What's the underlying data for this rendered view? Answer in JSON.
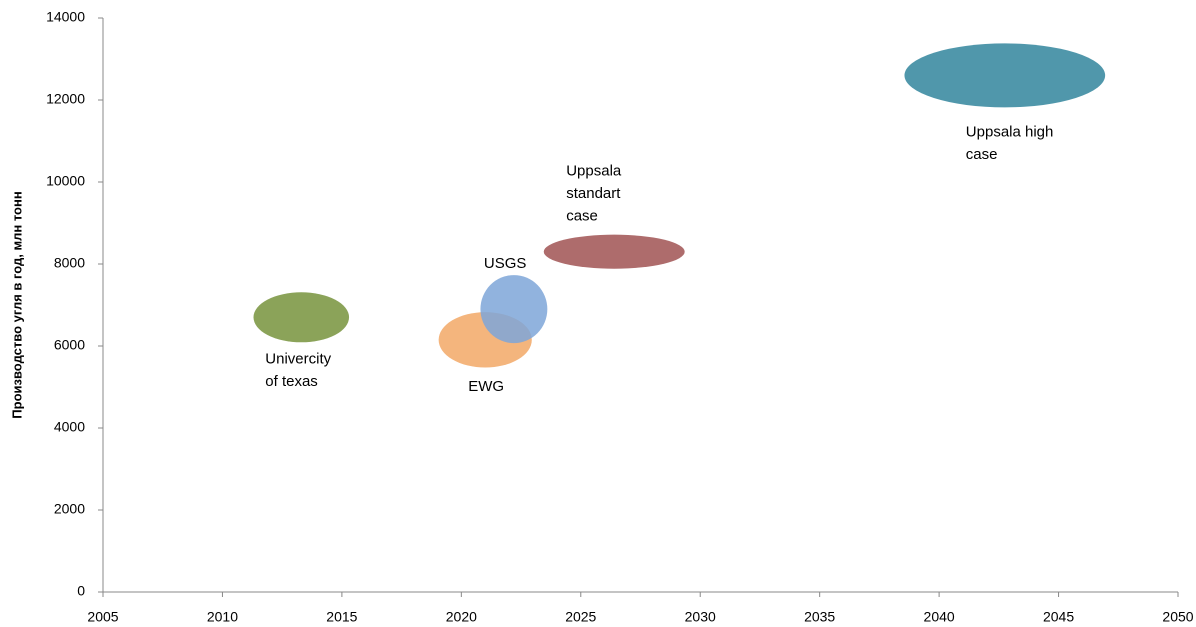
{
  "chart_data": {
    "type": "ellipse-bubble",
    "y_label": "Производство угля в год, млн тонн",
    "xlim": [
      2005,
      2050
    ],
    "xticks": [
      2005,
      2010,
      2015,
      2020,
      2025,
      2030,
      2035,
      2040,
      2045,
      2050
    ],
    "ylim": [
      0,
      14000
    ],
    "yticks": [
      0,
      2000,
      4000,
      6000,
      8000,
      10000,
      12000,
      14000
    ],
    "series": [
      {
        "name": [
          "Univercity",
          "of texas"
        ],
        "color": "#77933c",
        "x": 2013.3,
        "y": 6700,
        "width": 4.0,
        "height": 1220
      },
      {
        "name": [
          "EWG"
        ],
        "color": "#f2a866",
        "x": 2021.0,
        "y": 6150,
        "width": 3.9,
        "height": 1350
      },
      {
        "name": [
          "USGS"
        ],
        "color": "#7ea6d8",
        "x": 2022.2,
        "y": 6900,
        "width": 2.8,
        "height": 1660
      },
      {
        "name": [
          "Uppsala",
          "standart",
          "case"
        ],
        "color": "#a05252",
        "x": 2026.4,
        "y": 8300,
        "width": 5.9,
        "height": 830
      },
      {
        "name": [
          "Uppsala high",
          "case"
        ],
        "color": "#31859c",
        "x": 2042.75,
        "y": 12600,
        "width": 8.4,
        "height": 1560
      }
    ]
  }
}
